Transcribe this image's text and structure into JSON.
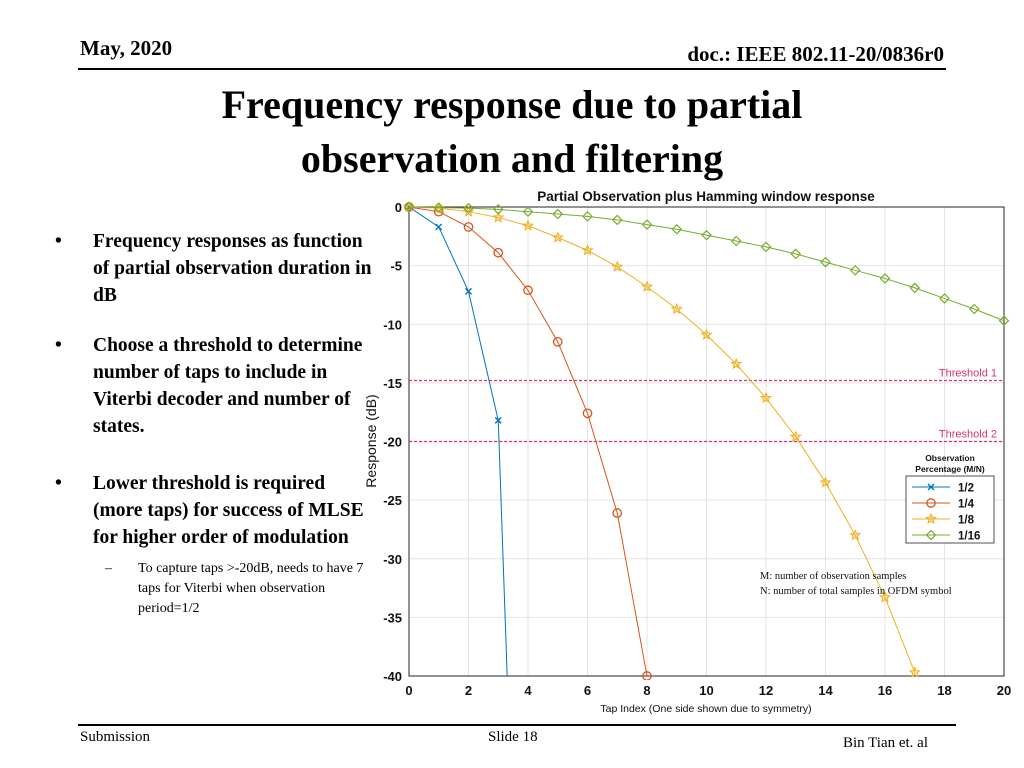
{
  "header": {
    "date": "May, 2020",
    "doc": "doc.: IEEE 802.11-20/0836r0"
  },
  "slide_title_line1": "Frequency response due to partial",
  "slide_title_line2": "observation and filtering",
  "bullets": [
    {
      "text": "Frequency responses as function of partial observation duration in dB"
    },
    {
      "text": "Choose a threshold to determine number of taps to include in Viterbi decoder and number of states."
    },
    {
      "text": "Lower threshold is required (more taps) for success of MLSE for higher order of modulation"
    }
  ],
  "sub_bullet": "To capture taps >-20dB,  needs to have 7 taps for Viterbi when observation period=1/2",
  "footer": {
    "left": "Submission",
    "center": "Slide 18",
    "right": "Bin Tian et. al"
  },
  "chart_data": {
    "type": "line",
    "title": "Partial Observation plus Hamming window response",
    "xlabel": "Tap Index (One side shown due to symmetry)",
    "ylabel": "Response (dB)",
    "xlim": [
      0,
      20
    ],
    "ylim": [
      -40,
      0
    ],
    "xticks": [
      0,
      2,
      4,
      6,
      8,
      10,
      12,
      14,
      16,
      18,
      20
    ],
    "yticks": [
      0,
      -5,
      -10,
      -15,
      -20,
      -25,
      -30,
      -35,
      -40
    ],
    "grid": true,
    "legend_title_line1": "Observation",
    "legend_title_line2": "Percentage (M/N)",
    "legend_position": "right",
    "series": [
      {
        "name": "1/2",
        "color": "#0072BD",
        "marker": "x",
        "x": [
          0,
          1,
          2,
          3,
          3.3
        ],
        "y": [
          0,
          -1.7,
          -7.2,
          -18.2,
          -40
        ]
      },
      {
        "name": "1/4",
        "color": "#D95319",
        "marker": "o",
        "x": [
          0,
          1,
          2,
          3,
          4,
          5,
          6,
          7,
          8
        ],
        "y": [
          0,
          -0.4,
          -1.7,
          -3.9,
          -7.1,
          -11.5,
          -17.6,
          -26.1,
          -40
        ]
      },
      {
        "name": "1/8",
        "color": "#EDB120",
        "marker": "star",
        "x": [
          0,
          1,
          2,
          3,
          4,
          5,
          6,
          7,
          8,
          9,
          10,
          11,
          12,
          13,
          14,
          15,
          16,
          17
        ],
        "y": [
          0,
          -0.1,
          -0.4,
          -0.9,
          -1.6,
          -2.6,
          -3.7,
          -5.1,
          -6.8,
          -8.7,
          -10.9,
          -13.4,
          -16.3,
          -19.6,
          -23.5,
          -28.0,
          -33.3,
          -39.7
        ]
      },
      {
        "name": "1/16",
        "color": "#77AC30",
        "marker": "diamond",
        "x": [
          0,
          1,
          2,
          3,
          4,
          5,
          6,
          7,
          8,
          9,
          10,
          11,
          12,
          13,
          14,
          15,
          16,
          17,
          18,
          19,
          20
        ],
        "y": [
          0,
          -0.05,
          -0.1,
          -0.2,
          -0.4,
          -0.6,
          -0.8,
          -1.1,
          -1.5,
          -1.9,
          -2.4,
          -2.9,
          -3.4,
          -4.0,
          -4.7,
          -5.4,
          -6.1,
          -6.9,
          -7.8,
          -8.7,
          -9.7
        ]
      }
    ],
    "thresholds": [
      {
        "label": "Threshold 1",
        "y": -14.8,
        "color": "#D6336C"
      },
      {
        "label": "Threshold 2",
        "y": -20.0,
        "color": "#D6336C"
      }
    ],
    "annotation_line1": "M: number of observation samples",
    "annotation_line2": "N: number of total samples in OFDM symbol"
  }
}
